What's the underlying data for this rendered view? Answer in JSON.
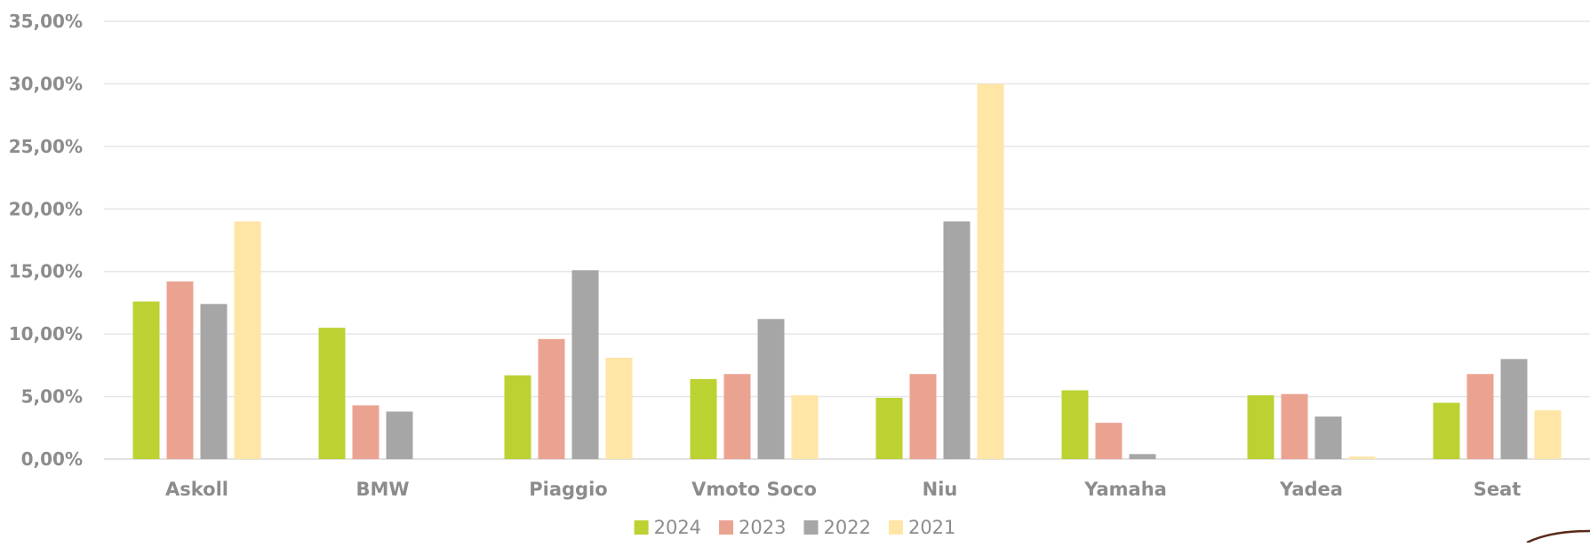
{
  "chart_data": {
    "type": "bar",
    "title": "",
    "xlabel": "",
    "ylabel": "",
    "ylim": [
      0,
      35
    ],
    "y_ticks": [
      0,
      5,
      10,
      15,
      20,
      25,
      30,
      35
    ],
    "y_tick_labels": [
      "0,00%",
      "5,00%",
      "10,00%",
      "15,00%",
      "20,00%",
      "25,00%",
      "30,00%",
      "35,00%"
    ],
    "grid": true,
    "legend_position": "bottom",
    "categories": [
      "Askoll",
      "BMW",
      "Piaggio",
      "Vmoto Soco",
      "Niu",
      "Yamaha",
      "Yadea",
      "Seat"
    ],
    "series": [
      {
        "name": "2024",
        "color": "#bcd233",
        "values": [
          12.6,
          10.5,
          6.7,
          6.4,
          4.9,
          5.5,
          5.1,
          4.5
        ]
      },
      {
        "name": "2023",
        "color": "#eba391",
        "values": [
          14.2,
          4.3,
          9.6,
          6.8,
          6.8,
          2.9,
          5.2,
          6.8
        ]
      },
      {
        "name": "2022",
        "color": "#a6a6a6",
        "values": [
          12.4,
          3.8,
          15.1,
          11.2,
          19.0,
          0.4,
          3.4,
          8.0
        ]
      },
      {
        "name": "2021",
        "color": "#ffe5a6",
        "values": [
          19.0,
          0,
          8.1,
          5.1,
          30.0,
          0,
          0.2,
          3.9
        ]
      }
    ]
  }
}
